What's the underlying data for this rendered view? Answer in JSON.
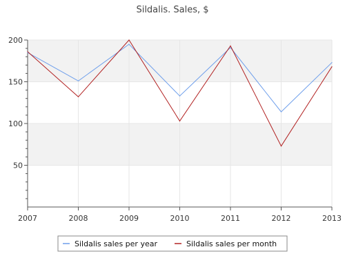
{
  "chart_data": {
    "type": "line",
    "title": "Sildalis. Sales, $",
    "xlabel": "",
    "ylabel": "",
    "categories": [
      "2007",
      "2008",
      "2009",
      "2010",
      "2011",
      "2012",
      "2013"
    ],
    "ylim": [
      0,
      200
    ],
    "yticks": [
      "50",
      "100",
      "150",
      "200"
    ],
    "grid": true,
    "legend_position": "bottom",
    "series": [
      {
        "name": "Sildalis sales per year",
        "color": "#6d9eeb",
        "values": [
          185,
          151,
          195,
          133,
          191,
          114,
          173
        ]
      },
      {
        "name": "Sildalis sales per month",
        "color": "#b22222",
        "values": [
          186,
          132,
          200,
          103,
          193,
          73,
          168
        ]
      }
    ],
    "band_color": "#f2f2f2"
  }
}
